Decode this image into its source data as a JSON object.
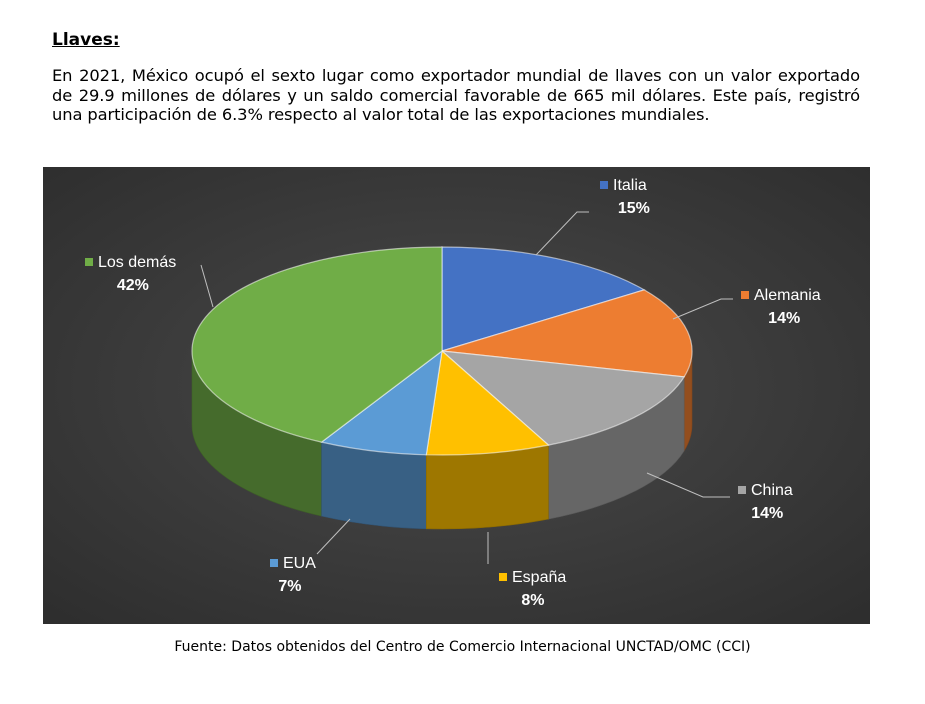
{
  "heading": "Llaves:",
  "paragraph": "En 2021, México ocupó el sexto lugar como exportador mundial de llaves con un valor exportado de 29.9 millones de dólares y un saldo comercial favorable de 665 mil dólares. Este país, registró una participación de 6.3% respecto al valor total de las exportaciones mundiales.",
  "source": "Fuente: Datos obtenidos del Centro de Comercio Internacional UNCTAD/OMC (CCI)",
  "chart_data": {
    "type": "pie",
    "style": "3d",
    "background": "#3a3a3a",
    "label_color": "#ffffff",
    "leader_color": "#bfbfbf",
    "slices": [
      {
        "name": "Italia",
        "value": 15,
        "label": "15%",
        "color": "#4472c4"
      },
      {
        "name": "Alemania",
        "value": 14,
        "label": "14%",
        "color": "#ed7d31"
      },
      {
        "name": "China",
        "value": 14,
        "label": "14%",
        "color": "#a5a5a5"
      },
      {
        "name": "España",
        "value": 8,
        "label": "8%",
        "color": "#ffc000"
      },
      {
        "name": "EUA",
        "value": 7,
        "label": "7%",
        "color": "#5b9bd5"
      },
      {
        "name": "Los demás",
        "value": 42,
        "label": "42%",
        "color": "#70ad47"
      }
    ]
  }
}
